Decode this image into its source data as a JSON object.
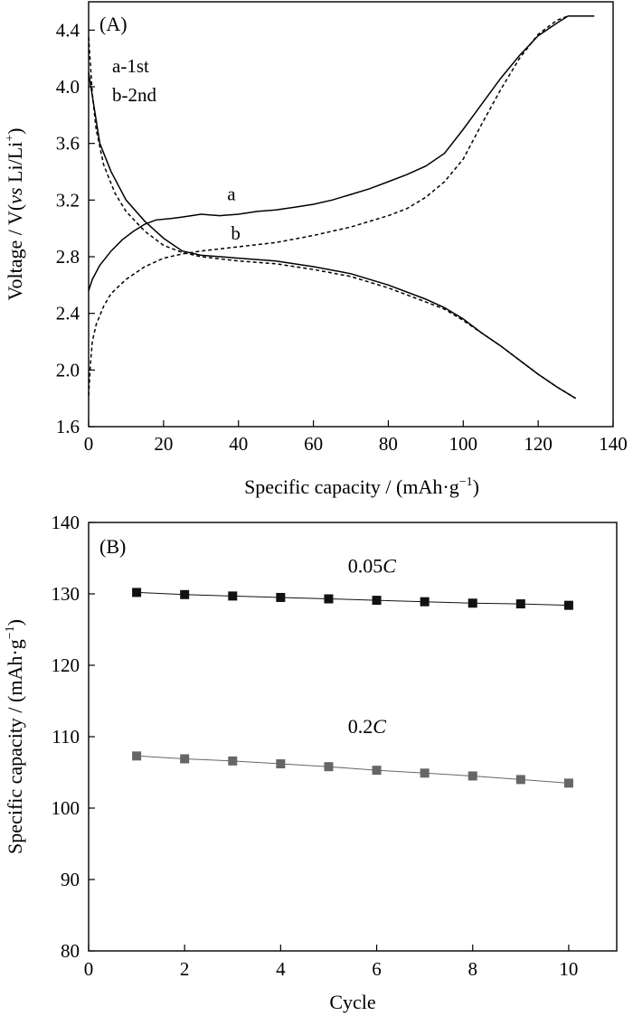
{
  "chart_data": [
    {
      "panel_label": "(A)",
      "type": "line",
      "xlabel": "Specific capacity / (mAh·g",
      "xlabel_sup": "−1",
      "xlabel_end": ")",
      "ylabel_pre": "Voltage / V(",
      "ylabel_vs": "vs",
      "ylabel_li": " Li/Li",
      "ylabel_sup": "+",
      "ylabel_end": ")",
      "xlim": [
        0,
        140
      ],
      "ylim": [
        1.6,
        4.6
      ],
      "xticks": [
        "0",
        "20",
        "40",
        "60",
        "80",
        "100",
        "120",
        "140"
      ],
      "yticks": [
        "1.6",
        "2.0",
        "2.4",
        "2.8",
        "3.2",
        "3.6",
        "4.0",
        "4.4"
      ],
      "legend": [
        "a-1st",
        "b-2nd"
      ],
      "curve_labels": [
        {
          "text": "a",
          "x": 37,
          "y": 3.2
        },
        {
          "text": "b",
          "x": 38,
          "y": 2.92
        }
      ],
      "series": [
        {
          "name": "a",
          "style": "solid",
          "segment": "charge",
          "points": [
            [
              0,
              2.56
            ],
            [
              1,
              2.64
            ],
            [
              3,
              2.74
            ],
            [
              6,
              2.84
            ],
            [
              9,
              2.92
            ],
            [
              12,
              2.98
            ],
            [
              15,
              3.03
            ],
            [
              18,
              3.06
            ],
            [
              22,
              3.07
            ],
            [
              25,
              3.08
            ],
            [
              30,
              3.1
            ],
            [
              35,
              3.09
            ],
            [
              40,
              3.1
            ],
            [
              45,
              3.12
            ],
            [
              50,
              3.13
            ],
            [
              55,
              3.15
            ],
            [
              60,
              3.17
            ],
            [
              65,
              3.2
            ],
            [
              70,
              3.24
            ],
            [
              75,
              3.28
            ],
            [
              80,
              3.33
            ],
            [
              85,
              3.38
            ],
            [
              90,
              3.44
            ],
            [
              95,
              3.53
            ],
            [
              100,
              3.7
            ],
            [
              105,
              3.88
            ],
            [
              110,
              4.06
            ],
            [
              115,
              4.22
            ],
            [
              120,
              4.36
            ],
            [
              125,
              4.45
            ],
            [
              128,
              4.5
            ],
            [
              130,
              4.5
            ],
            [
              135,
              4.5
            ]
          ]
        },
        {
          "name": "a",
          "style": "solid",
          "segment": "discharge",
          "points": [
            [
              0,
              4.1
            ],
            [
              3,
              3.6
            ],
            [
              6,
              3.4
            ],
            [
              10,
              3.2
            ],
            [
              15,
              3.05
            ],
            [
              20,
              2.93
            ],
            [
              25,
              2.84
            ],
            [
              30,
              2.81
            ],
            [
              40,
              2.79
            ],
            [
              50,
              2.77
            ],
            [
              60,
              2.73
            ],
            [
              70,
              2.68
            ],
            [
              80,
              2.6
            ],
            [
              90,
              2.5
            ],
            [
              95,
              2.44
            ],
            [
              100,
              2.36
            ],
            [
              105,
              2.26
            ],
            [
              110,
              2.17
            ],
            [
              115,
              2.07
            ],
            [
              120,
              1.97
            ],
            [
              125,
              1.88
            ],
            [
              130,
              1.8
            ]
          ]
        },
        {
          "name": "b",
          "style": "dashed",
          "segment": "charge",
          "points": [
            [
              0,
              1.82
            ],
            [
              0.5,
              2.05
            ],
            [
              1,
              2.2
            ],
            [
              2,
              2.32
            ],
            [
              4,
              2.45
            ],
            [
              6,
              2.54
            ],
            [
              10,
              2.64
            ],
            [
              15,
              2.73
            ],
            [
              20,
              2.79
            ],
            [
              25,
              2.82
            ],
            [
              30,
              2.84
            ],
            [
              40,
              2.87
            ],
            [
              50,
              2.9
            ],
            [
              60,
              2.95
            ],
            [
              70,
              3.01
            ],
            [
              80,
              3.09
            ],
            [
              85,
              3.14
            ],
            [
              90,
              3.22
            ],
            [
              95,
              3.33
            ],
            [
              100,
              3.49
            ],
            [
              105,
              3.74
            ],
            [
              110,
              3.98
            ],
            [
              115,
              4.2
            ],
            [
              120,
              4.37
            ],
            [
              125,
              4.47
            ],
            [
              128,
              4.5
            ],
            [
              131,
              4.5
            ]
          ]
        },
        {
          "name": "b",
          "style": "dashed",
          "segment": "discharge",
          "points": [
            [
              0,
              4.35
            ],
            [
              1,
              3.95
            ],
            [
              2,
              3.7
            ],
            [
              4,
              3.45
            ],
            [
              7,
              3.25
            ],
            [
              10,
              3.12
            ],
            [
              15,
              2.98
            ],
            [
              20,
              2.88
            ],
            [
              25,
              2.83
            ],
            [
              30,
              2.8
            ],
            [
              40,
              2.77
            ],
            [
              50,
              2.75
            ],
            [
              60,
              2.71
            ],
            [
              70,
              2.66
            ],
            [
              80,
              2.58
            ],
            [
              90,
              2.48
            ],
            [
              95,
              2.43
            ],
            [
              100,
              2.35
            ],
            [
              105,
              2.26
            ],
            [
              110,
              2.17
            ],
            [
              115,
              2.07
            ],
            [
              120,
              1.97
            ],
            [
              125,
              1.88
            ],
            [
              130,
              1.8
            ]
          ]
        }
      ]
    },
    {
      "panel_label": "(B)",
      "type": "scatter",
      "xlabel": "Cycle",
      "ylabel": "Specific capacity / (mAh·g",
      "ylabel_sup": "−1",
      "ylabel_end": ")",
      "xlim": [
        0,
        11
      ],
      "ylim": [
        80,
        140
      ],
      "xticks": [
        "0",
        "2",
        "4",
        "6",
        "8",
        "10"
      ],
      "yticks": [
        "80",
        "90",
        "100",
        "110",
        "120",
        "130",
        "140"
      ],
      "series": [
        {
          "name_num": "0.05",
          "name_unit": "C",
          "label_pos": {
            "x": 5.4,
            "y": 133
          },
          "color": "#111111",
          "x": [
            1,
            2,
            3,
            4,
            5,
            6,
            7,
            8,
            9,
            10
          ],
          "y": [
            130.2,
            129.9,
            129.7,
            129.5,
            129.3,
            129.1,
            128.9,
            128.7,
            128.6,
            128.4
          ]
        },
        {
          "name_num": "0.2",
          "name_unit": "C",
          "label_pos": {
            "x": 5.4,
            "y": 110.5
          },
          "color": "#666666",
          "x": [
            1,
            2,
            3,
            4,
            5,
            6,
            7,
            8,
            9,
            10
          ],
          "y": [
            107.3,
            106.9,
            106.6,
            106.2,
            105.8,
            105.3,
            104.9,
            104.5,
            104.0,
            103.5
          ]
        }
      ]
    }
  ]
}
